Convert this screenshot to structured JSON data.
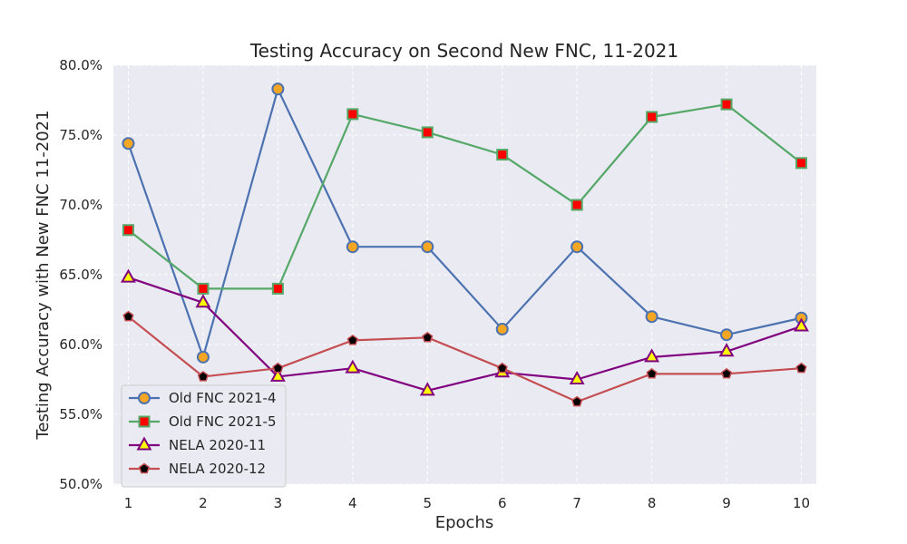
{
  "chart_data": {
    "type": "line",
    "title": "Testing Accuracy on Second New FNC, 11-2021",
    "xlabel": "Epochs",
    "ylabel": "Testing Accuracy with New FNC 11-2021",
    "x": [
      1,
      2,
      3,
      4,
      5,
      6,
      7,
      8,
      9,
      10
    ],
    "xlim": [
      0.8,
      10.2
    ],
    "ylim": [
      0.5,
      0.8
    ],
    "yticks": [
      0.5,
      0.55,
      0.6,
      0.65,
      0.7,
      0.75,
      0.8
    ],
    "ytick_labels": [
      "50.0%",
      "55.0%",
      "60.0%",
      "65.0%",
      "70.0%",
      "75.0%",
      "80.0%"
    ],
    "xtick_labels": [
      "1",
      "2",
      "3",
      "4",
      "5",
      "6",
      "7",
      "8",
      "9",
      "10"
    ],
    "grid": true,
    "legend_position": "lower-left",
    "series": [
      {
        "name": "Old FNC 2021-4",
        "values": [
          0.744,
          0.591,
          0.783,
          0.67,
          0.67,
          0.611,
          0.67,
          0.62,
          0.607,
          0.619
        ],
        "line_color": "#4c72b0",
        "marker": "circle",
        "marker_fill": "#f5a623",
        "marker_edge": "#4c72b0"
      },
      {
        "name": "Old FNC 2021-5",
        "values": [
          0.682,
          0.64,
          0.64,
          0.765,
          0.752,
          0.736,
          0.7,
          0.763,
          0.772,
          0.73
        ],
        "line_color": "#55a868",
        "marker": "square",
        "marker_fill": "#ff0000",
        "marker_edge": "#55a868"
      },
      {
        "name": "NELA 2020-11",
        "values": [
          0.648,
          0.63,
          0.577,
          0.583,
          0.567,
          0.58,
          0.575,
          0.591,
          0.595,
          0.613
        ],
        "line_color": "#800080",
        "marker": "triangle",
        "marker_fill": "#ffff00",
        "marker_edge": "#800080"
      },
      {
        "name": "NELA 2020-12",
        "values": [
          0.62,
          0.577,
          0.583,
          0.603,
          0.605,
          0.583,
          0.559,
          0.579,
          0.579,
          0.583
        ],
        "line_color": "#c44e52",
        "marker": "pentagon",
        "marker_fill": "#000000",
        "marker_edge": "#c44e52"
      }
    ]
  }
}
